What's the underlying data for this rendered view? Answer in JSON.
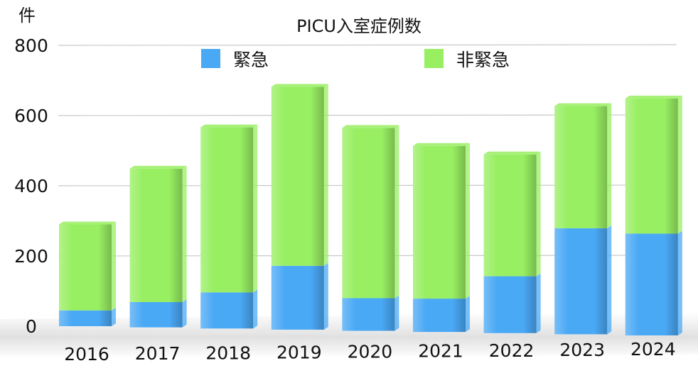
{
  "chart_data": {
    "type": "bar",
    "stacked": true,
    "title": "PICU入室症例数",
    "ylabel": "件",
    "xlabel": "",
    "ylim": [
      0,
      800
    ],
    "yticks": [
      0,
      200,
      400,
      600,
      800
    ],
    "grid": true,
    "legend_position": "top",
    "categories": [
      "2016",
      "2017",
      "2018",
      "2019",
      "2020",
      "2021",
      "2022",
      "2023",
      "2024"
    ],
    "series": [
      {
        "name": "緊急",
        "color": "#4aa9f5",
        "values": [
          45,
          72,
          103,
          182,
          93,
          95,
          162,
          302,
          290
        ]
      },
      {
        "name": "非緊急",
        "color": "#98ef62",
        "values": [
          245,
          380,
          470,
          510,
          485,
          435,
          347,
          348,
          385
        ]
      }
    ]
  }
}
